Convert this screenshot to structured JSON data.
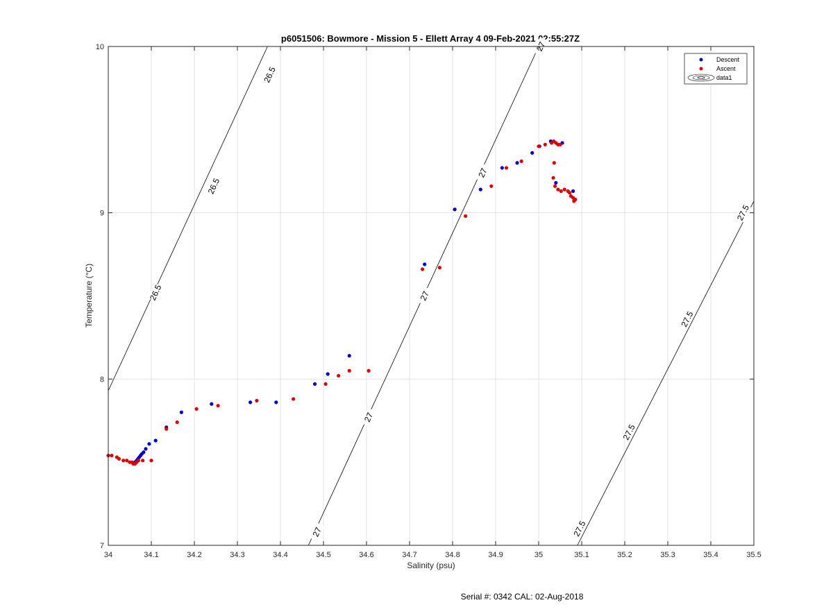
{
  "chart_data": {
    "type": "scatter",
    "title": "p6051506: Bowmore - Mission 5 - Ellett Array 4 09-Feb-2021 02:55:27Z",
    "xlabel": "Salinity (psu)",
    "ylabel": "Temperature (°C)",
    "xlim": [
      34,
      35.5
    ],
    "ylim": [
      7,
      10
    ],
    "xticks": [
      34,
      34.1,
      34.2,
      34.3,
      34.4,
      34.5,
      34.6,
      34.7,
      34.8,
      34.9,
      35,
      35.1,
      35.2,
      35.3,
      35.4,
      35.5
    ],
    "xtick_labels": [
      "34",
      "34.1",
      "34.2",
      "34.3",
      "34.4",
      "34.5",
      "34.6",
      "34.7",
      "34.8",
      "34.9",
      "35",
      "35.1",
      "35.2",
      "35.3",
      "35.4",
      "35.5"
    ],
    "yticks": [
      7,
      8,
      9,
      10
    ],
    "ytick_labels": [
      "7",
      "8",
      "9",
      "10"
    ],
    "grid": true,
    "legend_position": "top-right",
    "legend": [
      {
        "label": "Descent",
        "color": "#0000cc",
        "marker": "dot"
      },
      {
        "label": "Ascent",
        "color": "#dd0000",
        "marker": "dot"
      },
      {
        "label": "data1",
        "marker": "contour"
      }
    ],
    "contours": [
      {
        "label": "26.5",
        "points": [
          [
            34.0,
            7.93
          ],
          [
            34.37,
            10.0
          ]
        ],
        "label_positions": [
          [
            34.11,
            8.52
          ],
          [
            34.245,
            9.16
          ],
          [
            34.375,
            9.83
          ]
        ]
      },
      {
        "label": "27",
        "points": [
          [
            34.465,
            7.0
          ],
          [
            35.0,
            10.0
          ]
        ],
        "label_positions": [
          [
            34.485,
            7.08
          ],
          [
            34.605,
            7.77
          ],
          [
            34.735,
            8.5
          ],
          [
            34.87,
            9.24
          ],
          [
            35.005,
            10.0
          ]
        ]
      },
      {
        "label": "27.5",
        "points": [
          [
            35.09,
            7.0
          ],
          [
            35.5,
            9.07
          ]
        ],
        "label_positions": [
          [
            35.095,
            7.1
          ],
          [
            35.21,
            7.68
          ],
          [
            35.345,
            8.36
          ],
          [
            35.475,
            9.0
          ]
        ]
      }
    ],
    "series": [
      {
        "name": "Descent",
        "color": "#0000cc",
        "x": [
          34.062,
          34.066,
          34.069,
          34.072,
          34.075,
          34.078,
          34.082,
          34.087,
          34.095,
          34.11,
          34.135,
          34.17,
          34.24,
          34.33,
          34.39,
          34.48,
          34.51,
          34.56,
          34.735,
          34.805,
          34.865,
          34.915,
          34.95,
          34.985,
          35.002,
          35.028,
          35.055,
          35.04,
          35.08,
          35.085
        ],
        "y": [
          7.5,
          7.51,
          7.52,
          7.53,
          7.54,
          7.55,
          7.56,
          7.58,
          7.61,
          7.63,
          7.71,
          7.8,
          7.85,
          7.86,
          7.86,
          7.97,
          8.03,
          8.14,
          8.69,
          9.02,
          9.14,
          9.27,
          9.3,
          9.36,
          9.4,
          9.43,
          9.42,
          9.18,
          9.13,
          9.08
        ]
      },
      {
        "name": "Ascent",
        "color": "#dd0000",
        "x": [
          34.0,
          34.008,
          34.02,
          34.025,
          34.035,
          34.043,
          34.05,
          34.055,
          34.058,
          34.062,
          34.066,
          34.07,
          34.08,
          34.1,
          34.135,
          34.16,
          34.205,
          34.255,
          34.345,
          34.43,
          34.505,
          34.535,
          34.56,
          34.605,
          34.73,
          34.77,
          34.83,
          34.89,
          34.925,
          34.96,
          35.0,
          35.015,
          35.03,
          35.035,
          35.04,
          35.045,
          35.05,
          35.036,
          35.034,
          35.038,
          35.045,
          35.052,
          35.06,
          35.068,
          35.072,
          35.075,
          35.08,
          35.085,
          35.082
        ],
        "y": [
          7.54,
          7.54,
          7.53,
          7.52,
          7.51,
          7.51,
          7.5,
          7.5,
          7.49,
          7.49,
          7.5,
          7.51,
          7.51,
          7.51,
          7.7,
          7.74,
          7.82,
          7.84,
          7.87,
          7.88,
          7.97,
          8.02,
          8.05,
          8.05,
          8.66,
          8.67,
          8.98,
          9.16,
          9.27,
          9.31,
          9.4,
          9.41,
          9.42,
          9.43,
          9.42,
          9.41,
          9.41,
          9.3,
          9.21,
          9.16,
          9.14,
          9.13,
          9.14,
          9.13,
          9.12,
          9.1,
          9.09,
          9.08,
          9.07
        ]
      }
    ]
  },
  "footer": {
    "serial_text": "Serial #: 0342  CAL: 02-Aug-2018"
  }
}
